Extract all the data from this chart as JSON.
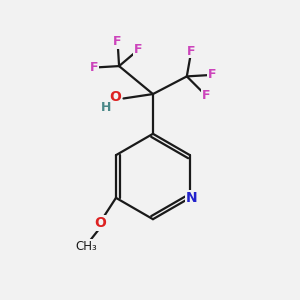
{
  "background_color": "#f2f2f2",
  "bond_color": "#1a1a1a",
  "F_color": "#cc44bb",
  "O_color": "#dd2222",
  "N_color": "#2222cc",
  "H_color": "#4a8888",
  "figsize": [
    3.0,
    3.0
  ],
  "dpi": 100,
  "xlim": [
    0,
    10
  ],
  "ylim": [
    0,
    10
  ]
}
